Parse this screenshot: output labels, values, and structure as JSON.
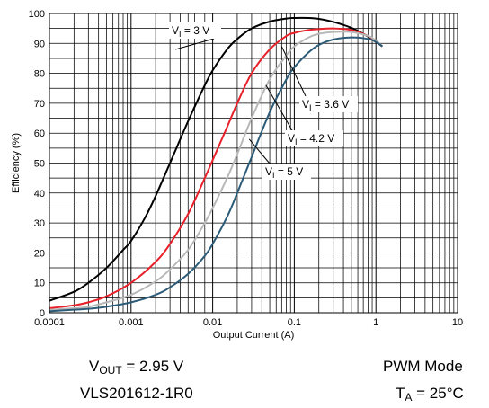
{
  "chart_data": {
    "type": "line",
    "xlabel": "Output Current (A)",
    "ylabel": "Efficiency (%)",
    "xscale": "log",
    "xlim": [
      0.0001,
      10
    ],
    "ylim": [
      0,
      100
    ],
    "grid": true,
    "x_tick_labels": [
      "0.0001",
      "0.001",
      "0.01",
      "0.1",
      "1",
      "10"
    ],
    "y_tick_labels": [
      "0",
      "10",
      "20",
      "30",
      "40",
      "50",
      "60",
      "70",
      "80",
      "90",
      "100"
    ],
    "series": [
      {
        "name_main": "V",
        "name_sub": "I",
        "name_rest": " = 3 V",
        "color": "#000000",
        "x": [
          0.0001,
          0.0002,
          0.0003,
          0.0005,
          0.0008,
          0.001,
          0.0015,
          0.002,
          0.003,
          0.005,
          0.008,
          0.01,
          0.015,
          0.02,
          0.03,
          0.05,
          0.08,
          0.1,
          0.15,
          0.2,
          0.3,
          0.5,
          0.8,
          1.0,
          1.2
        ],
        "y": [
          4,
          7,
          10,
          15,
          21,
          24,
          32,
          39,
          50,
          64,
          76,
          81,
          88,
          91.5,
          95,
          97.3,
          98.3,
          98.5,
          98.5,
          98.2,
          97.2,
          95.2,
          92.3,
          90.5,
          89
        ]
      },
      {
        "name_main": "V",
        "name_sub": "I",
        "name_rest": " = 3.6 V",
        "color": "#e8202a",
        "x": [
          0.0001,
          0.0002,
          0.0003,
          0.0005,
          0.001,
          0.002,
          0.003,
          0.005,
          0.008,
          0.01,
          0.015,
          0.02,
          0.03,
          0.05,
          0.08,
          0.1,
          0.15,
          0.2,
          0.3,
          0.5,
          0.8,
          1.0,
          1.2
        ],
        "y": [
          1.5,
          2.5,
          3.5,
          5.5,
          10,
          17,
          23,
          33,
          45,
          51,
          62,
          70,
          80,
          88,
          92.5,
          93.5,
          94.5,
          94.8,
          95,
          94.5,
          92.5,
          90.8,
          89
        ]
      },
      {
        "name_main": "V",
        "name_sub": "I",
        "name_rest": " = 4.2 V",
        "color": "#b8b8b8",
        "x": [
          0.0001,
          0.0002,
          0.0003,
          0.0005,
          0.001,
          0.002,
          0.003,
          0.005,
          0.008,
          0.01,
          0.015,
          0.02,
          0.03,
          0.05,
          0.08,
          0.1,
          0.15,
          0.2,
          0.3,
          0.5,
          0.8,
          1.0,
          1.2
        ],
        "y": [
          1,
          1.5,
          2,
          3.5,
          6,
          10.5,
          14.5,
          21,
          30,
          35,
          45,
          53,
          65,
          78,
          86,
          89,
          92,
          93.2,
          93.8,
          93.8,
          92.5,
          91,
          89
        ]
      },
      {
        "name_main": "V",
        "name_sub": "I",
        "name_rest": " = 5 V",
        "color": "#2c5b78",
        "x": [
          0.0001,
          0.0002,
          0.0003,
          0.0005,
          0.001,
          0.002,
          0.003,
          0.005,
          0.008,
          0.01,
          0.015,
          0.02,
          0.03,
          0.05,
          0.08,
          0.1,
          0.15,
          0.2,
          0.3,
          0.5,
          0.8,
          1.0,
          1.2
        ],
        "y": [
          0.5,
          1,
          1.3,
          2,
          3.5,
          6,
          8.5,
          13,
          19,
          23,
          32,
          40,
          52,
          67,
          78,
          82,
          87,
          89.5,
          91.3,
          92,
          91.5,
          90.5,
          89
        ]
      }
    ]
  },
  "conditions": {
    "vout_main": "V",
    "vout_sub": "OUT",
    "vout_rest": " = 2.95 V",
    "inductor": "VLS201612-1R0",
    "mode": "PWM Mode",
    "ta_main": "T",
    "ta_sub": "A",
    "ta_rest": " = 25°C"
  }
}
